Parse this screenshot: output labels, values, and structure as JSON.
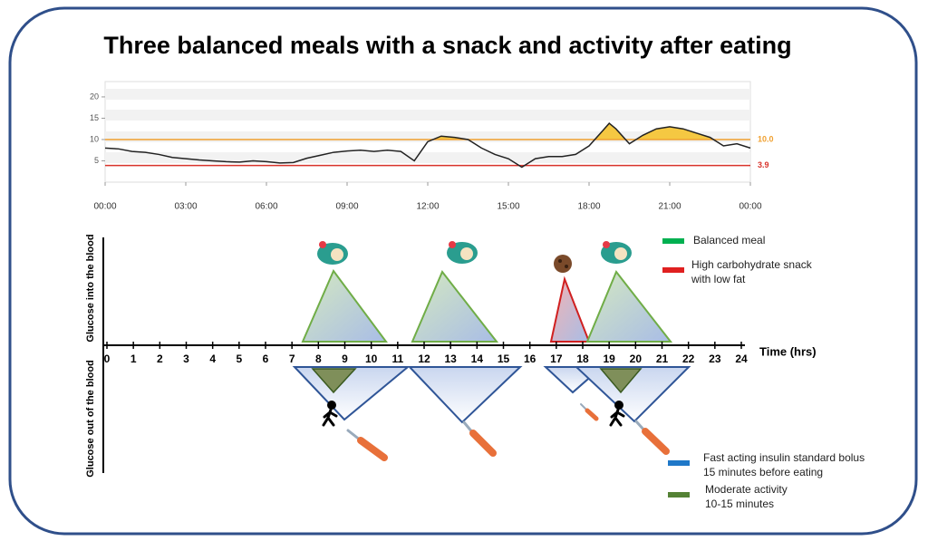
{
  "title": "Three balanced meals with a snack and activity after eating",
  "chart_data": {
    "type": "line",
    "x": [
      0,
      0.5,
      1,
      1.5,
      2,
      2.5,
      3,
      3.5,
      4,
      4.5,
      5,
      5.5,
      6,
      6.5,
      7,
      7.5,
      8,
      8.5,
      9,
      9.5,
      10,
      10.5,
      11,
      11.5,
      12,
      12.5,
      13,
      13.5,
      14,
      14.5,
      15,
      15.5,
      16,
      16.5,
      17,
      17.5,
      18,
      18.5,
      18.75,
      19,
      19.5,
      20,
      20.5,
      21,
      21.5,
      22,
      22.5,
      23,
      23.5,
      24
    ],
    "values": [
      8,
      7.8,
      7.2,
      7,
      6.5,
      5.8,
      5.5,
      5.2,
      5,
      4.8,
      4.7,
      5,
      4.8,
      4.5,
      4.6,
      5.6,
      6.3,
      7,
      7.3,
      7.5,
      7.2,
      7.5,
      7.2,
      5,
      9.5,
      10.8,
      10.5,
      10,
      8,
      6.5,
      5.5,
      3.5,
      5.5,
      6,
      6,
      6.5,
      8.5,
      12,
      13.8,
      12.5,
      9,
      11,
      12.5,
      13,
      12.5,
      11.5,
      10.5,
      8.5,
      9,
      8
    ],
    "color": "#222222",
    "xlim": [
      0,
      24
    ],
    "xticks": [
      {
        "value": 0,
        "label": "00:00"
      },
      {
        "value": 3,
        "label": "03:00"
      },
      {
        "value": 6,
        "label": "06:00"
      },
      {
        "value": 9,
        "label": "09:00"
      },
      {
        "value": 12,
        "label": "12:00"
      },
      {
        "value": 15,
        "label": "15:00"
      },
      {
        "value": 18,
        "label": "18:00"
      },
      {
        "value": 21,
        "label": "21:00"
      },
      {
        "value": 24,
        "label": "00:00"
      }
    ],
    "ylim": [
      0,
      23.6
    ],
    "yticks": [
      5,
      10,
      15,
      20
    ],
    "thresholds": [
      {
        "value": 10,
        "label": "10.0",
        "color": "#f0a030"
      },
      {
        "value": 3.9,
        "label": "3.9",
        "color": "#d9332b"
      }
    ],
    "high_fill": "#f5c842"
  },
  "diagram": {
    "y_label_top": "Glucose into the blood",
    "y_label_bottom": "Glucose out of the blood",
    "x_label": "Time (hrs)",
    "x_ticks": [
      0,
      1,
      2,
      3,
      4,
      5,
      6,
      7,
      8,
      9,
      10,
      11,
      12,
      13,
      14,
      15,
      16,
      17,
      18,
      19,
      20,
      21,
      22,
      23,
      24
    ],
    "legend": [
      {
        "lines": [
          "Balanced meal"
        ],
        "color": "#00b050"
      },
      {
        "lines": [
          "High carbohydrate snack",
          "with low fat"
        ],
        "color": "#e02020"
      },
      {
        "lines": [
          "Fast acting insulin standard bolus",
          "15 minutes before eating"
        ],
        "color": "#1f78c8"
      },
      {
        "lines": [
          "Moderate activity",
          "10-15 minutes"
        ],
        "color": "#548235"
      }
    ]
  }
}
